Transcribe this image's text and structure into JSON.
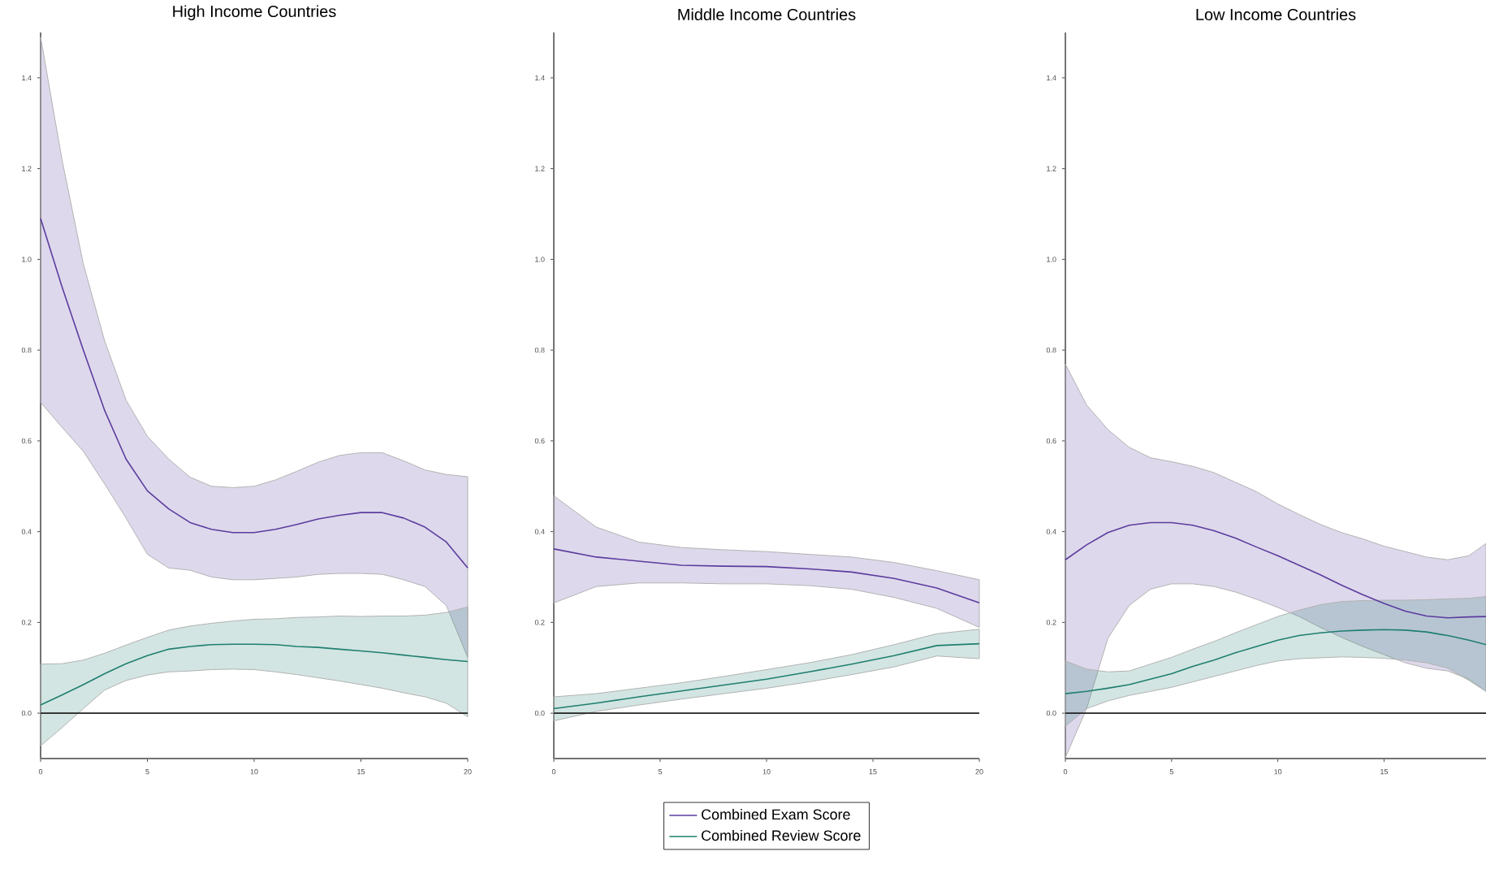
{
  "chart_data": [
    {
      "type": "line",
      "title": "High Income Countries",
      "xlim": [
        0,
        20
      ],
      "xticks": [
        0,
        5,
        10,
        15,
        20
      ],
      "ylim": [
        -0.1,
        1.5
      ],
      "yticks": [
        {
          "value": 0,
          "label": "0.0"
        },
        {
          "value": 0.2,
          "label": "0.2"
        },
        {
          "value": 0.4,
          "label": "0.4"
        },
        {
          "value": 0.6,
          "label": "0.6"
        },
        {
          "value": 0.8,
          "label": "0.8"
        },
        {
          "value": 1.0,
          "label": "1.0"
        },
        {
          "value": 1.2,
          "label": "1.2"
        },
        {
          "value": 1.4,
          "label": "1.4"
        }
      ],
      "ref_lines": [
        {
          "axis": "y",
          "value": 0,
          "color": "#222222"
        }
      ],
      "x": [
        0,
        1,
        2,
        3,
        4,
        5,
        6,
        7,
        8,
        9,
        10,
        11,
        12,
        13,
        14,
        15,
        16,
        17,
        18,
        19,
        20
      ],
      "series": [
        {
          "color": "#5b3c9e",
          "values": [
            1.09,
            0.94,
            0.8,
            0.667,
            0.56,
            0.49,
            0.45,
            0.42,
            0.405,
            0.398,
            0.398,
            0.405,
            0.416,
            0.428,
            0.436,
            0.442,
            0.442,
            0.43,
            0.41,
            0.377,
            0.32
          ],
          "lower": [
            0.685,
            0.63,
            0.577,
            0.505,
            0.43,
            0.35,
            0.32,
            0.315,
            0.3,
            0.294,
            0.294,
            0.297,
            0.3,
            0.306,
            0.308,
            0.308,
            0.306,
            0.294,
            0.279,
            0.237,
            0.123
          ],
          "upper": [
            1.49,
            1.22,
            0.99,
            0.82,
            0.69,
            0.61,
            0.56,
            0.52,
            0.5,
            0.497,
            0.5,
            0.514,
            0.533,
            0.553,
            0.568,
            0.574,
            0.574,
            0.556,
            0.536,
            0.526,
            0.521
          ]
        },
        {
          "color": "#1f7f6f",
          "values": [
            0.018,
            0.04,
            0.063,
            0.087,
            0.109,
            0.127,
            0.141,
            0.147,
            0.151,
            0.152,
            0.152,
            0.151,
            0.147,
            0.145,
            0.141,
            0.137,
            0.133,
            0.128,
            0.123,
            0.118,
            0.114
          ],
          "lower": [
            -0.072,
            -0.032,
            0.01,
            0.051,
            0.072,
            0.084,
            0.091,
            0.093,
            0.096,
            0.097,
            0.096,
            0.091,
            0.085,
            0.078,
            0.071,
            0.063,
            0.055,
            0.045,
            0.036,
            0.022,
            -0.008
          ],
          "upper": [
            0.108,
            0.109,
            0.117,
            0.132,
            0.15,
            0.167,
            0.183,
            0.192,
            0.198,
            0.203,
            0.207,
            0.208,
            0.211,
            0.212,
            0.214,
            0.213,
            0.214,
            0.214,
            0.216,
            0.222,
            0.234
          ]
        }
      ]
    },
    {
      "type": "line",
      "title": "Middle Income Countries",
      "xlim": [
        0,
        20
      ],
      "xticks": [
        0,
        5,
        10,
        15,
        20
      ],
      "ylim": [
        -0.1,
        1.5
      ],
      "yticks": [
        {
          "value": 0,
          "label": "0.0"
        },
        {
          "value": 0.2,
          "label": "0.2"
        },
        {
          "value": 0.4,
          "label": "0.4"
        },
        {
          "value": 0.6,
          "label": "0.6"
        },
        {
          "value": 0.8,
          "label": "0.8"
        },
        {
          "value": 1.0,
          "label": "1.0"
        },
        {
          "value": 1.2,
          "label": "1.2"
        },
        {
          "value": 1.4,
          "label": "1.4"
        }
      ],
      "ref_lines": [
        {
          "axis": "y",
          "value": 0,
          "color": "#222222"
        }
      ],
      "legend": "bottom",
      "x": [
        0,
        2,
        4,
        6,
        8,
        10,
        12,
        14,
        16,
        18,
        20
      ],
      "series": [
        {
          "name": "Combined Exam Score",
          "color": "#5b3c9e",
          "values": [
            0.362,
            0.344,
            0.335,
            0.326,
            0.324,
            0.323,
            0.318,
            0.311,
            0.297,
            0.276,
            0.243
          ],
          "lower": [
            0.243,
            0.279,
            0.287,
            0.287,
            0.285,
            0.285,
            0.281,
            0.273,
            0.255,
            0.231,
            0.189
          ],
          "upper": [
            0.479,
            0.41,
            0.377,
            0.365,
            0.36,
            0.356,
            0.35,
            0.344,
            0.332,
            0.314,
            0.294
          ]
        },
        {
          "name": "Combined Review Score",
          "color": "#1f7f6f",
          "values": [
            0.01,
            0.022,
            0.036,
            0.049,
            0.062,
            0.075,
            0.091,
            0.108,
            0.127,
            0.149,
            0.153
          ],
          "lower": [
            -0.017,
            0.004,
            0.018,
            0.031,
            0.043,
            0.055,
            0.069,
            0.085,
            0.102,
            0.126,
            0.12
          ],
          "upper": [
            0.036,
            0.043,
            0.055,
            0.067,
            0.081,
            0.096,
            0.111,
            0.129,
            0.151,
            0.175,
            0.185
          ]
        }
      ]
    },
    {
      "type": "line",
      "title": "Low Income Countries",
      "xlim": [
        0,
        19.8
      ],
      "xticks": [
        0,
        5,
        10,
        15
      ],
      "ylim": [
        -0.1,
        1.5
      ],
      "yticks": [
        {
          "value": 0,
          "label": "0.0"
        },
        {
          "value": 0.2,
          "label": "0.2"
        },
        {
          "value": 0.4,
          "label": "0.4"
        },
        {
          "value": 0.6,
          "label": "0.6"
        },
        {
          "value": 0.8,
          "label": "0.8"
        },
        {
          "value": 1.0,
          "label": "1.0"
        },
        {
          "value": 1.2,
          "label": "1.2"
        },
        {
          "value": 1.4,
          "label": "1.4"
        }
      ],
      "ref_lines": [
        {
          "axis": "y",
          "value": 0,
          "color": "#222222"
        }
      ],
      "x": [
        0,
        1,
        2,
        3,
        4,
        5,
        6,
        7,
        8,
        9,
        10,
        11,
        12,
        13,
        14,
        15,
        16,
        17,
        18,
        19,
        19.8
      ],
      "series": [
        {
          "color": "#5b3c9e",
          "values": [
            0.338,
            0.371,
            0.398,
            0.414,
            0.42,
            0.42,
            0.414,
            0.402,
            0.386,
            0.366,
            0.347,
            0.326,
            0.305,
            0.282,
            0.261,
            0.242,
            0.225,
            0.214,
            0.21,
            0.212,
            0.213
          ],
          "lower": [
            -0.098,
            0.01,
            0.165,
            0.237,
            0.273,
            0.285,
            0.285,
            0.279,
            0.267,
            0.251,
            0.233,
            0.213,
            0.189,
            0.167,
            0.147,
            0.129,
            0.111,
            0.099,
            0.093,
            0.075,
            0.048
          ],
          "upper": [
            0.769,
            0.679,
            0.625,
            0.586,
            0.563,
            0.554,
            0.544,
            0.53,
            0.509,
            0.488,
            0.461,
            0.438,
            0.416,
            0.398,
            0.384,
            0.368,
            0.356,
            0.344,
            0.338,
            0.347,
            0.374
          ]
        },
        {
          "color": "#1f7f6f",
          "values": [
            0.043,
            0.048,
            0.055,
            0.063,
            0.075,
            0.087,
            0.103,
            0.117,
            0.133,
            0.147,
            0.161,
            0.171,
            0.177,
            0.181,
            0.183,
            0.184,
            0.183,
            0.179,
            0.171,
            0.161,
            0.151
          ],
          "lower": [
            -0.029,
            0.01,
            0.027,
            0.039,
            0.048,
            0.057,
            0.069,
            0.081,
            0.093,
            0.105,
            0.115,
            0.12,
            0.122,
            0.124,
            0.123,
            0.121,
            0.117,
            0.111,
            0.099,
            0.072,
            0.048
          ],
          "upper": [
            0.115,
            0.097,
            0.091,
            0.093,
            0.108,
            0.123,
            0.141,
            0.158,
            0.177,
            0.195,
            0.213,
            0.227,
            0.239,
            0.246,
            0.248,
            0.249,
            0.249,
            0.25,
            0.252,
            0.253,
            0.257
          ]
        }
      ]
    }
  ]
}
